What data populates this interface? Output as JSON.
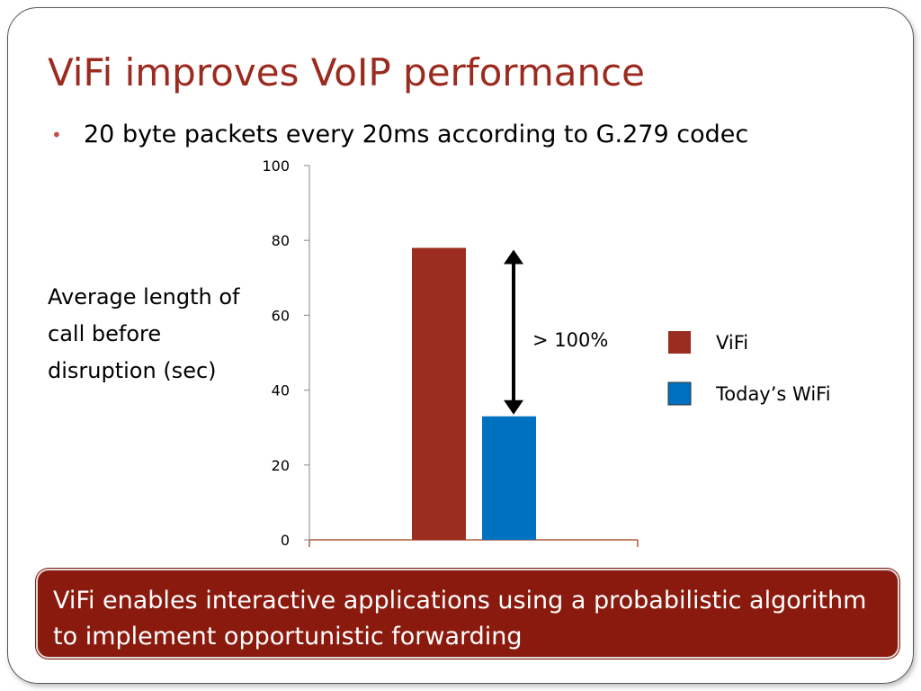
{
  "slide": {
    "title": "ViFi improves VoIP performance",
    "bullet": "20 byte packets every 20ms according to G.279 codec",
    "callout": "ViFi enables interactive applications using a probabilistic algorithm to implement opportunistic forwarding"
  },
  "colors": {
    "title": "#9b2b1f",
    "vifi": "#9b2d20",
    "wifi": "#0070c0",
    "callout_bg": "#8b1a0e"
  },
  "chart_data": {
    "type": "bar",
    "ylabel": "Average length of call before disruption (sec)",
    "ylim": [
      0,
      100
    ],
    "yticks": [
      0,
      20,
      40,
      60,
      80,
      100
    ],
    "series": [
      {
        "name": "ViFi",
        "values": [
          78
        ],
        "color": "#9b2d20"
      },
      {
        "name": "Today’s WiFi",
        "values": [
          33
        ],
        "color": "#0070c0"
      }
    ],
    "annotation": "> 100%",
    "legend": "right",
    "grid": false
  }
}
